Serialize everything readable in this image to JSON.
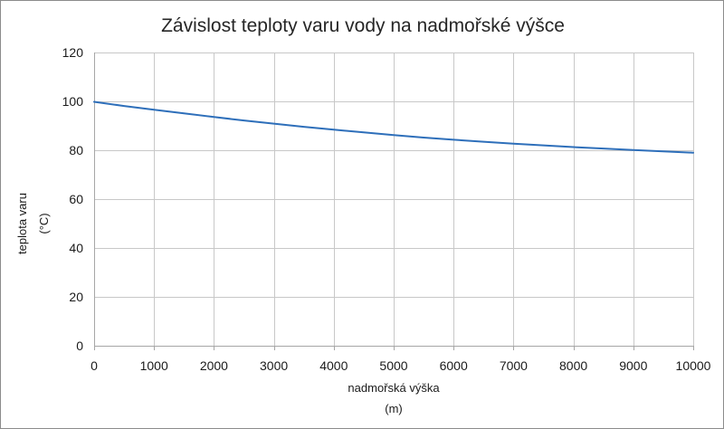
{
  "chart_data": {
    "type": "line",
    "title": "Závislost teploty varu vody na nadmořské výšce",
    "xlabel": [
      "nadmořská výška",
      "(m)"
    ],
    "ylabel": [
      "teplota varu",
      "(°C)"
    ],
    "xlim": [
      0,
      10000
    ],
    "ylim": [
      0,
      120
    ],
    "xticks": [
      0,
      1000,
      2000,
      3000,
      4000,
      5000,
      6000,
      7000,
      8000,
      9000,
      10000
    ],
    "yticks": [
      0,
      20,
      40,
      60,
      80,
      100,
      120
    ],
    "grid": true,
    "legend": "none",
    "series": [
      {
        "color": "#2e6fba",
        "x": [
          0,
          500,
          1000,
          1500,
          2000,
          2500,
          3000,
          3500,
          4000,
          4500,
          5000,
          5500,
          6000,
          6500,
          7000,
          7500,
          8000,
          8500,
          9000,
          9500,
          10000
        ],
        "y": [
          99.8,
          98.1,
          96.6,
          95.1,
          93.6,
          92.2,
          90.9,
          89.6,
          88.4,
          87.3,
          86.2,
          85.2,
          84.3,
          83.5,
          82.7,
          82.0,
          81.3,
          80.7,
          80.1,
          79.5,
          79.0
        ]
      }
    ]
  }
}
